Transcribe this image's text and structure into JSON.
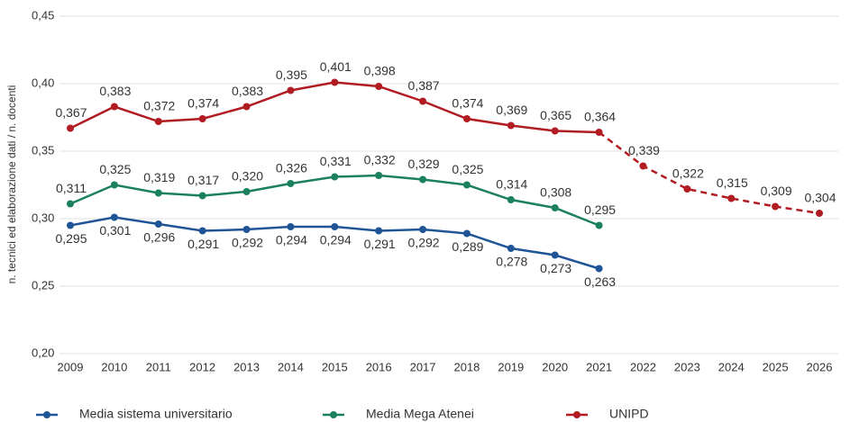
{
  "chart_data": {
    "type": "line",
    "y_axis_label": "n. tecnici ed elaborazione dati / n. docenti",
    "categories": [
      "2009",
      "2010",
      "2011",
      "2012",
      "2013",
      "2014",
      "2015",
      "2016",
      "2017",
      "2018",
      "2019",
      "2020",
      "2021",
      "2022",
      "2023",
      "2024",
      "2025",
      "2026"
    ],
    "ylim": [
      0.2,
      0.45
    ],
    "yticks": [
      {
        "value": 0.2,
        "label": "0,20"
      },
      {
        "value": 0.25,
        "label": "0,25"
      },
      {
        "value": 0.3,
        "label": "0,30"
      },
      {
        "value": 0.35,
        "label": "0,35"
      },
      {
        "value": 0.4,
        "label": "0,40"
      },
      {
        "value": 0.45,
        "label": "0,45"
      }
    ],
    "grid": true,
    "legend": "bottom",
    "series": [
      {
        "name": "Media sistema universitario",
        "color": "#1f5596",
        "label_position": "below",
        "values": [
          0.295,
          0.301,
          0.296,
          0.291,
          0.292,
          0.294,
          0.294,
          0.291,
          0.292,
          0.289,
          0.278,
          0.273,
          0.263,
          null,
          null,
          null,
          null,
          null
        ],
        "value_labels": [
          "0,295",
          "0,301",
          "0,296",
          "0,291",
          "0,292",
          "0,294",
          "0,294",
          "0,291",
          "0,292",
          "0,289",
          "0,278",
          "0,273",
          "0,263",
          null,
          null,
          null,
          null,
          null
        ]
      },
      {
        "name": "Media Mega Atenei",
        "color": "#1a8060",
        "label_position": "above",
        "values": [
          0.311,
          0.325,
          0.319,
          0.317,
          0.32,
          0.326,
          0.331,
          0.332,
          0.329,
          0.325,
          0.314,
          0.308,
          0.295,
          null,
          null,
          null,
          null,
          null
        ],
        "value_labels": [
          "0,311",
          "0,325",
          "0,319",
          "0,317",
          "0,320",
          "0,326",
          "0,331",
          "0,332",
          "0,329",
          "0,325",
          "0,314",
          "0,308",
          "0,295",
          null,
          null,
          null,
          null,
          null
        ]
      },
      {
        "name": "UNIPD",
        "color": "#b01c22",
        "label_position": "above",
        "dash_start": 12,
        "values": [
          0.367,
          0.383,
          0.372,
          0.374,
          0.383,
          0.395,
          0.401,
          0.398,
          0.387,
          0.374,
          0.369,
          0.365,
          0.364,
          0.339,
          0.322,
          0.315,
          0.309,
          0.304
        ],
        "value_labels": [
          "0,367",
          "0,383",
          "0,372",
          "0,374",
          "0,383",
          "0,395",
          "0,401",
          "0,398",
          "0,387",
          "0,374",
          "0,369",
          "0,365",
          "0,364",
          "0,339",
          "0,322",
          "0,315",
          "0,309",
          "0,304"
        ]
      }
    ]
  }
}
